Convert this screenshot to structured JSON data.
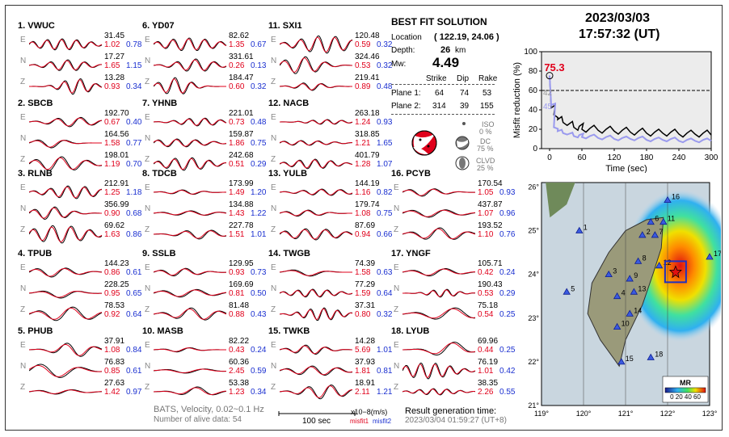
{
  "stations": [
    {
      "id": "1",
      "name": "VWUC",
      "col": 0,
      "row": 0,
      "rows": [
        {
          "comp": "E",
          "amp": "31.45",
          "m1": "1.02",
          "m2": "0.78"
        },
        {
          "comp": "N",
          "amp": "17.27",
          "m1": "1.65",
          "m2": "1.15"
        },
        {
          "comp": "Z",
          "amp": "13.28",
          "m1": "0.93",
          "m2": "0.34"
        }
      ]
    },
    {
      "id": "2",
      "name": "SBCB",
      "col": 0,
      "row": 1,
      "rows": [
        {
          "comp": "E",
          "amp": "192.70",
          "m1": "0.67",
          "m2": "0.40"
        },
        {
          "comp": "N",
          "amp": "164.56",
          "m1": "1.58",
          "m2": "0.77"
        },
        {
          "comp": "Z",
          "amp": "198.01",
          "m1": "1.19",
          "m2": "0.70"
        }
      ]
    },
    {
      "id": "3",
      "name": "RLNB",
      "col": 0,
      "row": 2,
      "rows": [
        {
          "comp": "E",
          "amp": "212.91",
          "m1": "1.25",
          "m2": "1.18"
        },
        {
          "comp": "N",
          "amp": "356.99",
          "m1": "0.90",
          "m2": "0.68"
        },
        {
          "comp": "Z",
          "amp": "69.62",
          "m1": "1.63",
          "m2": "0.86"
        }
      ]
    },
    {
      "id": "4",
      "name": "TPUB",
      "col": 0,
      "row": 3,
      "rows": [
        {
          "comp": "E",
          "amp": "144.23",
          "m1": "0.86",
          "m2": "0.61"
        },
        {
          "comp": "N",
          "amp": "228.25",
          "m1": "0.95",
          "m2": "0.65"
        },
        {
          "comp": "Z",
          "amp": "78.53",
          "m1": "0.92",
          "m2": "0.64"
        }
      ]
    },
    {
      "id": "5",
      "name": "PHUB",
      "col": 0,
      "row": 4,
      "rows": [
        {
          "comp": "E",
          "amp": "37.91",
          "m1": "1.08",
          "m2": "0.84"
        },
        {
          "comp": "N",
          "amp": "76.83",
          "m1": "0.85",
          "m2": "0.61"
        },
        {
          "comp": "Z",
          "amp": "27.63",
          "m1": "1.42",
          "m2": "0.97"
        }
      ]
    },
    {
      "id": "6",
      "name": "YD07",
      "col": 1,
      "row": 0,
      "rows": [
        {
          "comp": "E",
          "amp": "82.62",
          "m1": "1.35",
          "m2": "0.67"
        },
        {
          "comp": "N",
          "amp": "331.61",
          "m1": "0.26",
          "m2": "0.13"
        },
        {
          "comp": "Z",
          "amp": "184.47",
          "m1": "0.60",
          "m2": "0.32"
        }
      ]
    },
    {
      "id": "7",
      "name": "YHNB",
      "col": 1,
      "row": 1,
      "rows": [
        {
          "comp": "E",
          "amp": "221.01",
          "m1": "0.73",
          "m2": "0.48"
        },
        {
          "comp": "N",
          "amp": "159.87",
          "m1": "1.86",
          "m2": "0.75"
        },
        {
          "comp": "Z",
          "amp": "242.68",
          "m1": "0.51",
          "m2": "0.29"
        }
      ]
    },
    {
      "id": "8",
      "name": "TDCB",
      "col": 1,
      "row": 2,
      "rows": [
        {
          "comp": "E",
          "amp": "173.99",
          "m1": "1.49",
          "m2": "1.20"
        },
        {
          "comp": "N",
          "amp": "134.88",
          "m1": "1.43",
          "m2": "1.22"
        },
        {
          "comp": "Z",
          "amp": "227.78",
          "m1": "1.51",
          "m2": "1.01"
        }
      ]
    },
    {
      "id": "9",
      "name": "SSLB",
      "col": 1,
      "row": 3,
      "rows": [
        {
          "comp": "E",
          "amp": "129.95",
          "m1": "0.93",
          "m2": "0.73"
        },
        {
          "comp": "N",
          "amp": "169.69",
          "m1": "0.81",
          "m2": "0.50"
        },
        {
          "comp": "Z",
          "amp": "81.48",
          "m1": "0.88",
          "m2": "0.43"
        }
      ]
    },
    {
      "id": "10",
      "name": "MASB",
      "col": 1,
      "row": 4,
      "rows": [
        {
          "comp": "E",
          "amp": "82.22",
          "m1": "0.43",
          "m2": "0.24"
        },
        {
          "comp": "N",
          "amp": "60.36",
          "m1": "2.45",
          "m2": "0.59"
        },
        {
          "comp": "Z",
          "amp": "53.38",
          "m1": "1.23",
          "m2": "0.34"
        }
      ]
    },
    {
      "id": "11",
      "name": "SXI1",
      "col": 2,
      "row": 0,
      "rows": [
        {
          "comp": "E",
          "amp": "120.48",
          "m1": "0.59",
          "m2": "0.32"
        },
        {
          "comp": "N",
          "amp": "324.46",
          "m1": "0.53",
          "m2": "0.32"
        },
        {
          "comp": "Z",
          "amp": "219.41",
          "m1": "0.89",
          "m2": "0.48"
        }
      ]
    },
    {
      "id": "12",
      "name": "NACB",
      "col": 2,
      "row": 1,
      "rows": [
        {
          "comp": "E",
          "amp": "263.18",
          "m1": "1.24",
          "m2": "0.93"
        },
        {
          "comp": "N",
          "amp": "318.85",
          "m1": "1.21",
          "m2": "1.65"
        },
        {
          "comp": "Z",
          "amp": "401.79",
          "m1": "1.28",
          "m2": "1.07"
        }
      ]
    },
    {
      "id": "13",
      "name": "YULB",
      "col": 2,
      "row": 2,
      "rows": [
        {
          "comp": "E",
          "amp": "144.19",
          "m1": "1.16",
          "m2": "0.82"
        },
        {
          "comp": "N",
          "amp": "179.74",
          "m1": "1.08",
          "m2": "0.75"
        },
        {
          "comp": "Z",
          "amp": "87.69",
          "m1": "0.94",
          "m2": "0.66"
        }
      ]
    },
    {
      "id": "14",
      "name": "TWGB",
      "col": 2,
      "row": 3,
      "rows": [
        {
          "comp": "E",
          "amp": "74.39",
          "m1": "1.58",
          "m2": "0.63"
        },
        {
          "comp": "N",
          "amp": "77.29",
          "m1": "1.59",
          "m2": "0.64"
        },
        {
          "comp": "Z",
          "amp": "37.31",
          "m1": "0.80",
          "m2": "0.32"
        }
      ]
    },
    {
      "id": "15",
      "name": "TWKB",
      "col": 2,
      "row": 4,
      "rows": [
        {
          "comp": "E",
          "amp": "14.28",
          "m1": "5.69",
          "m2": "1.01"
        },
        {
          "comp": "N",
          "amp": "37.93",
          "m1": "1.81",
          "m2": "0.81"
        },
        {
          "comp": "Z",
          "amp": "18.91",
          "m1": "2.11",
          "m2": "1.21"
        }
      ]
    },
    {
      "id": "16",
      "name": "PCYB",
      "col": 3,
      "row": 2,
      "rows": [
        {
          "comp": "E",
          "amp": "170.54",
          "m1": "1.05",
          "m2": "0.93"
        },
        {
          "comp": "N",
          "amp": "437.87",
          "m1": "1.07",
          "m2": "0.96"
        },
        {
          "comp": "Z",
          "amp": "193.52",
          "m1": "1.10",
          "m2": "0.76"
        }
      ]
    },
    {
      "id": "17",
      "name": "YNGF",
      "col": 3,
      "row": 3,
      "rows": [
        {
          "comp": "E",
          "amp": "105.71",
          "m1": "0.42",
          "m2": "0.24"
        },
        {
          "comp": "N",
          "amp": "190.43",
          "m1": "0.53",
          "m2": "0.29"
        },
        {
          "comp": "Z",
          "amp": "75.18",
          "m1": "0.54",
          "m2": "0.25"
        }
      ]
    },
    {
      "id": "18",
      "name": "LYUB",
      "col": 3,
      "row": 4,
      "rows": [
        {
          "comp": "E",
          "amp": "69.96",
          "m1": "0.44",
          "m2": "0.25"
        },
        {
          "comp": "N",
          "amp": "76.19",
          "m1": "1.01",
          "m2": "0.42"
        },
        {
          "comp": "Z",
          "amp": "38.35",
          "m1": "2.26",
          "m2": "0.55"
        }
      ]
    }
  ],
  "best_fit": {
    "title": "BEST FIT SOLUTION",
    "location_label": "Location",
    "location_value": "( 122.19, 24.06 )",
    "depth_label": "Depth:",
    "depth_value": "26",
    "depth_unit": "km",
    "mw_label": "Mw:",
    "mw_value": "4.49",
    "headers": [
      "Strike",
      "Dip",
      "Rake"
    ],
    "planes": [
      {
        "label": "Plane 1:",
        "strike": "64",
        "dip": "74",
        "rake": "53"
      },
      {
        "label": "Plane 2:",
        "strike": "314",
        "dip": "39",
        "rake": "155"
      }
    ],
    "iso_label": "ISO",
    "iso_value": "0 %",
    "dc_label": "DC",
    "dc_value": "75 %",
    "clvd_label": "CLVD",
    "clvd_value": "25 %"
  },
  "datetime": {
    "date": "2023/03/03",
    "time": "17:57:32  (UT)"
  },
  "misfit_chart": {
    "type": "line",
    "ylabel": "Misfit reduction (%)",
    "xlabel": "Time (sec)",
    "xlim": [
      -15,
      300
    ],
    "ylim": [
      0,
      100
    ],
    "xticks": [
      "0",
      "60",
      "120",
      "180",
      "240",
      "300"
    ],
    "yticks": [
      "0",
      "20",
      "40",
      "60",
      "80",
      "100"
    ],
    "peak_label": "75.3",
    "label_42": "42",
    "label_45": "45",
    "threshold": 60,
    "series": [
      {
        "color": "#000000",
        "points": [
          [
            0,
            75.3
          ],
          [
            3,
            42
          ],
          [
            8,
            35
          ],
          [
            15,
            30
          ],
          [
            25,
            27
          ],
          [
            35,
            25
          ],
          [
            45,
            22
          ],
          [
            55,
            23
          ],
          [
            60,
            20
          ],
          [
            75,
            21
          ],
          [
            90,
            19
          ],
          [
            105,
            20
          ],
          [
            120,
            18
          ],
          [
            135,
            19
          ],
          [
            150,
            17
          ],
          [
            165,
            18
          ],
          [
            180,
            16
          ],
          [
            195,
            17
          ],
          [
            210,
            16
          ],
          [
            225,
            17
          ],
          [
            240,
            15
          ],
          [
            255,
            16
          ],
          [
            270,
            15
          ],
          [
            285,
            16
          ],
          [
            300,
            14
          ]
        ]
      },
      {
        "color": "#9a9aee",
        "points": [
          [
            0,
            75.3
          ],
          [
            3,
            45
          ],
          [
            8,
            22
          ],
          [
            15,
            18
          ],
          [
            25,
            16
          ],
          [
            35,
            15
          ],
          [
            45,
            13
          ],
          [
            55,
            14
          ],
          [
            60,
            12
          ],
          [
            75,
            13
          ],
          [
            90,
            11
          ],
          [
            105,
            12
          ],
          [
            120,
            10
          ],
          [
            135,
            11
          ],
          [
            150,
            10
          ],
          [
            165,
            11
          ],
          [
            180,
            9
          ],
          [
            195,
            10
          ],
          [
            210,
            9
          ],
          [
            225,
            10
          ],
          [
            240,
            8
          ],
          [
            255,
            9
          ],
          [
            270,
            8
          ],
          [
            285,
            9
          ],
          [
            300,
            8
          ]
        ]
      }
    ]
  },
  "map": {
    "lon_ticks": [
      "119°",
      "120°",
      "121°",
      "122°",
      "123°"
    ],
    "lat_ticks": [
      "26°",
      "25°",
      "24°",
      "23°",
      "22°",
      "21°"
    ],
    "legend_title": "MR",
    "legend_ticks": "0 20 40 60",
    "station_markers": [
      {
        "id": "1",
        "lon": 119.9,
        "lat": 25.0
      },
      {
        "id": "2",
        "lon": 121.4,
        "lat": 24.9
      },
      {
        "id": "3",
        "lon": 120.6,
        "lat": 24.0
      },
      {
        "id": "4",
        "lon": 120.8,
        "lat": 23.5
      },
      {
        "id": "5",
        "lon": 119.6,
        "lat": 23.6
      },
      {
        "id": "6",
        "lon": 121.6,
        "lat": 25.2
      },
      {
        "id": "7",
        "lon": 121.7,
        "lat": 24.9
      },
      {
        "id": "8",
        "lon": 121.3,
        "lat": 24.3
      },
      {
        "id": "9",
        "lon": 121.1,
        "lat": 23.9
      },
      {
        "id": "10",
        "lon": 120.8,
        "lat": 22.8
      },
      {
        "id": "11",
        "lon": 121.9,
        "lat": 25.2
      },
      {
        "id": "12",
        "lon": 121.8,
        "lat": 24.2
      },
      {
        "id": "13",
        "lon": 121.2,
        "lat": 23.6
      },
      {
        "id": "14",
        "lon": 121.1,
        "lat": 23.1
      },
      {
        "id": "15",
        "lon": 120.9,
        "lat": 22.0
      },
      {
        "id": "16",
        "lon": 122.0,
        "lat": 25.7
      },
      {
        "id": "17",
        "lon": 123.0,
        "lat": 24.4
      },
      {
        "id": "18",
        "lon": 121.6,
        "lat": 22.1
      }
    ],
    "epicenter": {
      "lon": 122.19,
      "lat": 24.06
    }
  },
  "footer": {
    "line1": "BATS, Velocity, 0.02~0.1 Hz",
    "line2": "Number of alive data: 54",
    "scale_label": "100 sec",
    "unit_label": "x10−8(m/s)",
    "misfit1": "misfit1",
    "misfit2": "misfit2",
    "gen_label": "Result generation time:",
    "gen_value": "2023/03/04 01:59:27 (UT+8)"
  },
  "colors": {
    "synthetic": "#e0001b",
    "observed": "#000000",
    "misfit2": "#1a2fd0"
  }
}
